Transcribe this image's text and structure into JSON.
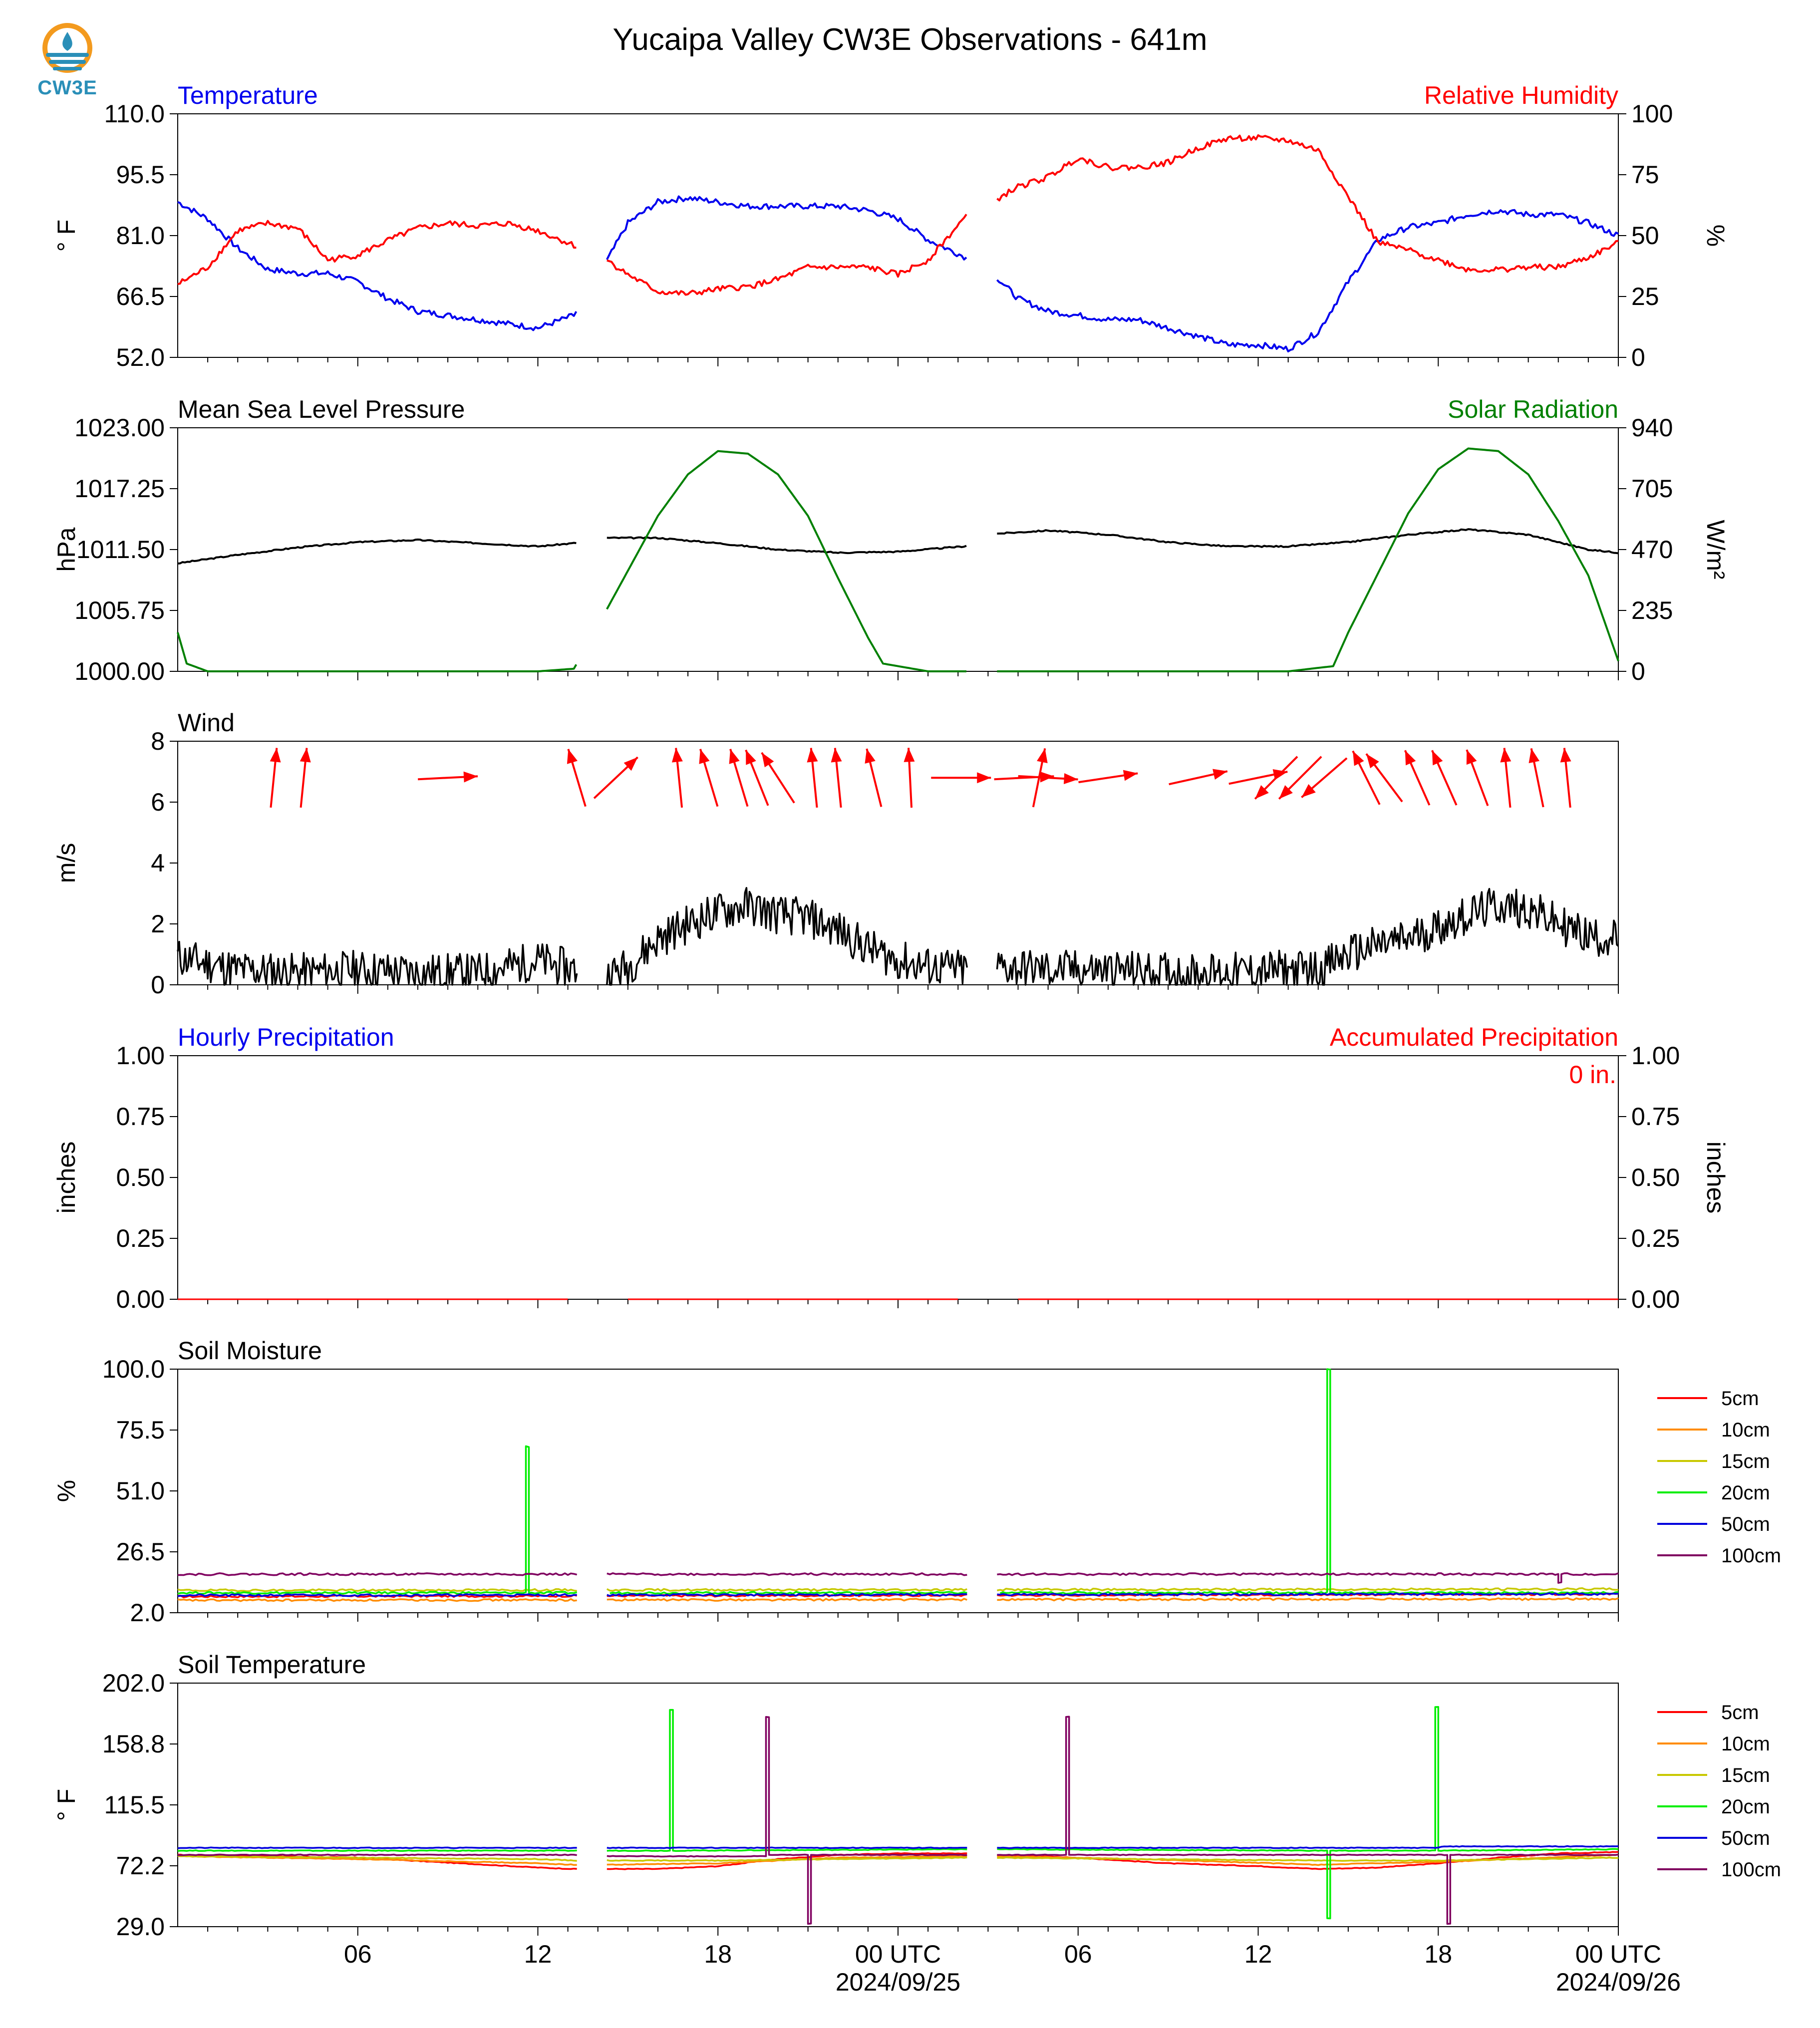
{
  "logo": {
    "text": "CW3E"
  },
  "figure": {
    "title": "Yucaipa Valley CW3E Observations - 641m"
  },
  "colors": {
    "temperature": "#0000ee",
    "humidity": "#ff0000",
    "pressure": "#000000",
    "solar": "#008000",
    "wind_speed": "#000000",
    "wind_arrow": "#ff0000",
    "soil": {
      "5cm": "#ff0000",
      "10cm": "#ff8c00",
      "15cm": "#c8c800",
      "20cm": "#00ee00",
      "50cm": "#0000dd",
      "100cm": "#800060"
    }
  },
  "x_axis": {
    "hours_span": 48,
    "ticks": [
      {
        "label": "06",
        "hour": 6
      },
      {
        "label": "12",
        "hour": 12
      },
      {
        "label": "18",
        "hour": 18
      },
      {
        "label": "00 UTC",
        "hour": 24,
        "date": "2024/09/25"
      },
      {
        "label": "06",
        "hour": 30
      },
      {
        "label": "12",
        "hour": 36
      },
      {
        "label": "18",
        "hour": 42
      },
      {
        "label": "00 UTC",
        "hour": 48,
        "date": "2024/09/26"
      }
    ],
    "data_gaps": [
      [
        13.3,
        14.3
      ],
      [
        26.3,
        27.3
      ]
    ]
  },
  "panels": {
    "temp_rh": {
      "left_title": "Temperature",
      "right_title": "Relative Humidity",
      "left_unit": "° F",
      "right_unit": "%",
      "left_ticks": [
        "110.0",
        "95.5",
        "81.0",
        "66.5",
        "52.0"
      ],
      "right_ticks": [
        "100",
        "75",
        "50",
        "25",
        "0"
      ]
    },
    "pressure_solar": {
      "left_title": "Mean Sea Level Pressure",
      "right_title": "Solar Radiation",
      "left_unit": "hPa",
      "right_unit": "W/m²",
      "left_ticks": [
        "1023.00",
        "1017.25",
        "1011.50",
        "1005.75",
        "1000.00"
      ],
      "right_ticks": [
        "940",
        "705",
        "470",
        "235",
        "0"
      ]
    },
    "wind": {
      "left_title": "Wind",
      "left_unit": "m/s",
      "left_ticks": [
        "8",
        "6",
        "4",
        "2",
        "0"
      ]
    },
    "precip": {
      "left_title": "Hourly Precipitation",
      "right_title": "Accumulated Precipitation",
      "accum_label": "0 in.",
      "left_unit": "inches",
      "right_unit": "inches",
      "left_ticks": [
        "1.00",
        "0.75",
        "0.50",
        "0.25",
        "0.00"
      ],
      "right_ticks": [
        "1.00",
        "0.75",
        "0.50",
        "0.25",
        "0.00"
      ]
    },
    "soil_moisture": {
      "left_title": "Soil Moisture",
      "left_unit": "%",
      "left_ticks": [
        "100.0",
        "75.5",
        "51.0",
        "26.5",
        "2.0"
      ],
      "legend": [
        "5cm",
        "10cm",
        "15cm",
        "20cm",
        "50cm",
        "100cm"
      ]
    },
    "soil_temp": {
      "left_title": "Soil Temperature",
      "left_unit": "° F",
      "left_ticks": [
        "202.0",
        "158.8",
        "115.5",
        "72.2",
        "29.0"
      ],
      "legend": [
        "5cm",
        "10cm",
        "15cm",
        "20cm",
        "50cm",
        "100cm"
      ]
    }
  },
  "chart_data": [
    {
      "type": "line",
      "title": "Temperature / Relative Humidity",
      "x_units": "hours from start (0-48)",
      "ylim_left": [
        52.0,
        110.0
      ],
      "ylim_right": [
        0,
        100
      ],
      "series": [
        {
          "name": "Temperature",
          "axis": "left",
          "x": [
            0,
            1,
            2,
            3,
            4,
            5,
            6,
            7,
            8,
            9,
            10,
            11,
            12,
            13.2,
            14.3,
            15,
            16,
            17,
            18,
            19,
            20,
            21,
            22,
            23,
            24,
            25,
            26.2,
            27.3,
            28,
            29,
            30,
            31,
            32,
            33,
            34,
            35,
            36,
            37,
            38,
            39,
            40,
            41,
            42,
            43,
            44,
            45,
            46,
            47,
            48
          ],
          "y": [
            89,
            85,
            78,
            73,
            72,
            72,
            70,
            66,
            63,
            62,
            61,
            60,
            59,
            62,
            75,
            84,
            89,
            90,
            89,
            88,
            88,
            88,
            88,
            87,
            85,
            80,
            76,
            71,
            66,
            63,
            62,
            61,
            61,
            59,
            57,
            55,
            55,
            54,
            58,
            70,
            80,
            83,
            84,
            86,
            87,
            86,
            86,
            84,
            81
          ]
        },
        {
          "name": "Relative Humidity",
          "axis": "right",
          "x": [
            0,
            1,
            2,
            3,
            4,
            5,
            6,
            7,
            8,
            9,
            10,
            11,
            12,
            13.2,
            14.3,
            15,
            16,
            17,
            18,
            19,
            20,
            21,
            22,
            23,
            24,
            25,
            26.2,
            27.3,
            28,
            29,
            30,
            31,
            32,
            33,
            34,
            35,
            36,
            37,
            38,
            39,
            40,
            41,
            42,
            43,
            44,
            45,
            46,
            47,
            48
          ],
          "y": [
            30,
            37,
            52,
            55,
            53,
            40,
            42,
            48,
            53,
            55,
            54,
            55,
            52,
            46,
            40,
            34,
            27,
            26,
            28,
            29,
            32,
            37,
            37,
            37,
            34,
            40,
            57,
            65,
            70,
            74,
            82,
            78,
            78,
            80,
            86,
            90,
            90,
            89,
            85,
            66,
            47,
            44,
            40,
            36,
            36,
            37,
            37,
            41,
            47
          ]
        }
      ]
    },
    {
      "type": "line",
      "title": "Mean Sea Level Pressure / Solar Radiation",
      "x_units": "hours from start (0-48)",
      "ylim_left": [
        1000.0,
        1023.0
      ],
      "ylim_right": [
        0,
        940
      ],
      "series": [
        {
          "name": "Mean Sea Level Pressure",
          "axis": "left",
          "x": [
            0,
            2,
            4,
            6,
            8,
            10,
            12,
            13.2,
            14.3,
            16,
            18,
            20,
            22,
            24,
            26.2,
            27.3,
            29,
            31,
            33,
            35,
            37,
            39,
            41,
            43,
            45,
            47,
            48
          ],
          "y": [
            1010.2,
            1011.0,
            1011.7,
            1012.2,
            1012.4,
            1012.1,
            1011.8,
            1012.1,
            1012.6,
            1012.6,
            1012.1,
            1011.5,
            1011.2,
            1011.3,
            1011.8,
            1013.0,
            1013.3,
            1012.9,
            1012.2,
            1011.8,
            1011.8,
            1012.2,
            1012.9,
            1013.4,
            1012.9,
            1011.5,
            1011.2
          ]
        },
        {
          "name": "Solar Radiation",
          "axis": "right",
          "x": [
            0,
            0.3,
            1,
            2,
            4,
            6,
            8,
            10,
            12,
            13.2,
            14.3,
            16,
            17,
            18,
            19,
            20,
            21,
            22,
            23,
            23.5,
            25,
            26.2,
            27.3,
            29,
            31,
            33,
            35,
            37,
            38.5,
            39,
            40,
            41,
            42,
            43,
            44,
            45,
            46,
            47,
            48
          ],
          "y": [
            150,
            30,
            0,
            0,
            0,
            0,
            0,
            0,
            0,
            10,
            240,
            600,
            760,
            850,
            840,
            760,
            600,
            360,
            130,
            30,
            0,
            0,
            0,
            0,
            0,
            0,
            0,
            0,
            20,
            150,
            380,
            610,
            780,
            860,
            850,
            760,
            580,
            370,
            40
          ]
        }
      ]
    },
    {
      "type": "line",
      "title": "Wind",
      "x_units": "hours from start (0-48)",
      "ylim": [
        0,
        8
      ],
      "series": [
        {
          "name": "Wind speed",
          "x": [
            0,
            2,
            4,
            6,
            8,
            10,
            12,
            13.2,
            14.3,
            15,
            16,
            17,
            18,
            19,
            20,
            21,
            22,
            23,
            24,
            25,
            26.2,
            27.3,
            29,
            31,
            33,
            35,
            37,
            38,
            39,
            40,
            41,
            42,
            43,
            44,
            45,
            46,
            47,
            48
          ],
          "y": [
            0.9,
            0.5,
            0.4,
            0.5,
            0.4,
            0.4,
            0.8,
            0.5,
            0.3,
            0.6,
            1.5,
            2.0,
            2.4,
            2.6,
            2.3,
            2.2,
            1.8,
            1.2,
            0.8,
            0.6,
            0.5,
            0.6,
            0.5,
            0.5,
            0.4,
            0.4,
            0.5,
            0.5,
            1.0,
            1.3,
            1.5,
            1.9,
            2.3,
            2.6,
            2.5,
            2.0,
            1.6,
            1.5
          ]
        },
        {
          "name": "Wind direction arrows",
          "x": [
            3.2,
            4.2,
            9.0,
            13.3,
            14.6,
            16.7,
            17.7,
            18.7,
            19.3,
            20.0,
            21.2,
            22.0,
            23.2,
            24.4,
            26.1,
            28.2,
            28.7,
            29.0,
            31.0,
            34.0,
            36.0,
            36.6,
            37.4,
            38.2,
            39.6,
            40.2,
            41.3,
            42.2,
            43.3,
            44.3,
            45.3,
            46.3
          ],
          "u": [
            0.1,
            0.1,
            1.0,
            -0.3,
            0.85,
            -0.1,
            -0.3,
            -0.3,
            -0.4,
            -0.55,
            -0.1,
            -0.1,
            -0.25,
            -0.05,
            0.1,
            1.0,
            0.2,
            0.9,
            1.0,
            0.99,
            0.97,
            -0.7,
            -0.7,
            -0.75,
            -0.45,
            -0.6,
            -0.4,
            -0.4,
            -0.35,
            -0.1,
            -0.2,
            -0.1
          ],
          "v": [
            1.0,
            1.0,
            0.05,
            1.0,
            0.8,
            1.0,
            1.0,
            1.0,
            1.0,
            0.85,
            1.0,
            1.0,
            1.0,
            1.0,
            0.0,
            0.05,
            1.0,
            -0.05,
            0.15,
            0.22,
            0.2,
            -0.7,
            -0.7,
            -0.65,
            0.9,
            0.8,
            0.9,
            0.9,
            0.93,
            1.0,
            0.98,
            1.0
          ]
        }
      ]
    },
    {
      "type": "line",
      "title": "Hourly Precipitation / Accumulated Precipitation",
      "x_units": "hours from start (0-48)",
      "ylim_left": [
        0,
        1.0
      ],
      "ylim_right": [
        0,
        1.0
      ],
      "series": [
        {
          "name": "Hourly Precipitation",
          "axis": "left",
          "x": [
            0,
            48
          ],
          "y": [
            0,
            0
          ]
        },
        {
          "name": "Accumulated Precipitation",
          "axis": "right",
          "x": [
            0,
            48
          ],
          "y": [
            0,
            0
          ]
        }
      ]
    },
    {
      "type": "line",
      "title": "Soil Moisture",
      "x_units": "hours from start (0-48)",
      "ylim": [
        2.0,
        100.0
      ],
      "series": [
        {
          "name": "5cm",
          "x": [
            0,
            48
          ],
          "y": [
            8.5,
            9.5
          ]
        },
        {
          "name": "10cm",
          "x": [
            0,
            48
          ],
          "y": [
            7.0,
            7.5
          ]
        },
        {
          "name": "15cm",
          "x": [
            0,
            48
          ],
          "y": [
            11.0,
            11.5
          ]
        },
        {
          "name": "20cm",
          "x": [
            0,
            11.6,
            11.6,
            11.7,
            11.7,
            38.3,
            38.3,
            38.4,
            38.4,
            48
          ],
          "y": [
            10,
            10,
            69,
            69,
            10,
            10,
            100,
            100,
            10,
            10
          ]
        },
        {
          "name": "50cm",
          "x": [
            0,
            48
          ],
          "y": [
            9.0,
            9.5
          ]
        },
        {
          "name": "100cm",
          "x": [
            0,
            46.0,
            46.0,
            46.1,
            46.1,
            48
          ],
          "y": [
            17.5,
            17.5,
            14,
            14,
            17.5,
            17.5
          ]
        }
      ]
    },
    {
      "type": "line",
      "title": "Soil Temperature",
      "x_units": "hours from start (0-48)",
      "ylim": [
        29.0,
        202.0
      ],
      "series": [
        {
          "name": "5cm",
          "x": [
            0,
            6,
            12,
            13.2,
            14.3,
            16,
            18,
            20,
            22,
            24,
            26.2,
            27.3,
            30,
            33,
            36,
            38,
            40,
            42,
            44,
            46,
            48
          ],
          "y": [
            80,
            78,
            71,
            70,
            70,
            70,
            72,
            77,
            80,
            81,
            81,
            80,
            78,
            74,
            72,
            70,
            71,
            74,
            78,
            81,
            82
          ]
        },
        {
          "name": "10cm",
          "x": [
            0,
            6,
            12,
            13.2,
            14.3,
            18,
            22,
            26.2,
            27.3,
            32,
            38,
            42,
            48
          ],
          "y": [
            79,
            77,
            74,
            73,
            73,
            74,
            78,
            79,
            79,
            77,
            73,
            75,
            80
          ]
        },
        {
          "name": "15cm",
          "x": [
            0,
            6,
            12,
            13.2,
            14.3,
            18,
            22,
            26.2,
            27.3,
            32,
            38,
            42,
            48
          ],
          "y": [
            79,
            78,
            77,
            76,
            76,
            76,
            77,
            78,
            78,
            77,
            76,
            76,
            78
          ]
        },
        {
          "name": "20cm",
          "x": [
            0,
            13.2,
            14.3,
            16.4,
            16.4,
            16.5,
            16.5,
            26.2,
            27.3,
            38.3,
            38.3,
            38.4,
            38.4,
            41.9,
            41.9,
            42.0,
            42.0,
            48
          ],
          "y": [
            83,
            83,
            83,
            83,
            183,
            183,
            83,
            84,
            84,
            83,
            35,
            35,
            83,
            83,
            185,
            185,
            83,
            84
          ]
        },
        {
          "name": "50cm",
          "x": [
            0,
            13.2,
            14.3,
            26.2,
            27.3,
            42,
            42.1,
            48
          ],
          "y": [
            85,
            85,
            85,
            85,
            85,
            85,
            86,
            86
          ]
        },
        {
          "name": "100cm",
          "x": [
            0,
            13.2,
            14.3,
            19.6,
            19.6,
            19.7,
            19.7,
            21.0,
            21.0,
            21.1,
            21.1,
            26.2,
            27.3,
            29.6,
            29.6,
            29.7,
            29.7,
            42.3,
            42.3,
            42.4,
            42.4,
            48
          ],
          "y": [
            80,
            80,
            79,
            79,
            178,
            178,
            80,
            80,
            31,
            31,
            80,
            80,
            80,
            80,
            178,
            178,
            80,
            80,
            31,
            31,
            80,
            80
          ]
        }
      ]
    }
  ]
}
